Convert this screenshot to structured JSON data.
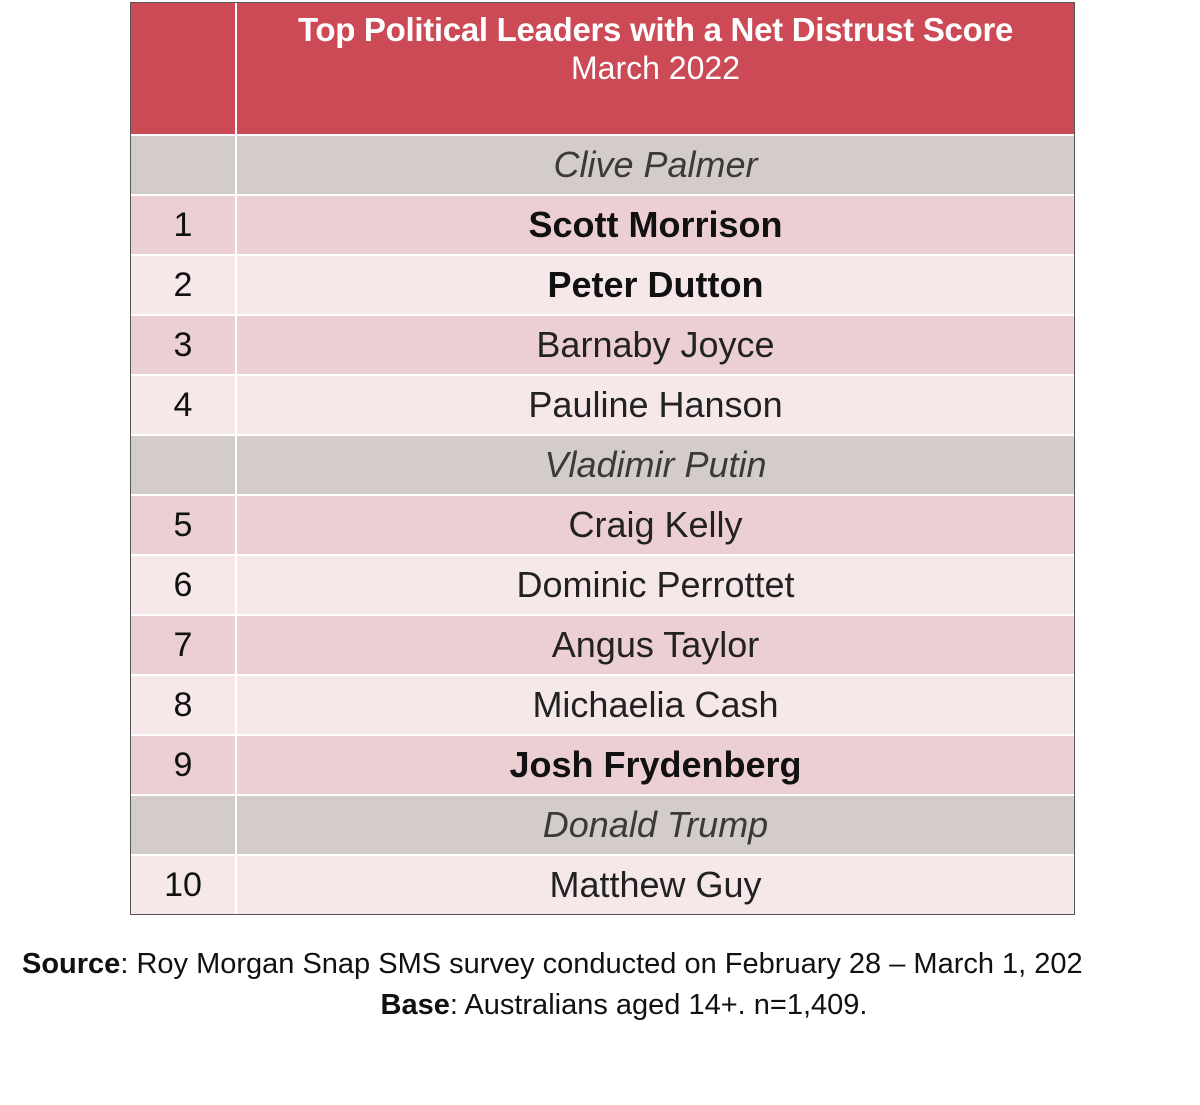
{
  "table": {
    "title": "Top Political Leaders with a Net Distrust Score",
    "subtitle": "March 2022",
    "rows": [
      {
        "rank": "",
        "name": "Clive Palmer",
        "style": "grey"
      },
      {
        "rank": "1",
        "name": "Scott Morrison",
        "style": "odd bold"
      },
      {
        "rank": "2",
        "name": "Peter Dutton",
        "style": "even bold"
      },
      {
        "rank": "3",
        "name": "Barnaby Joyce",
        "style": "odd"
      },
      {
        "rank": "4",
        "name": "Pauline Hanson",
        "style": "even"
      },
      {
        "rank": "",
        "name": "Vladimir Putin",
        "style": "grey"
      },
      {
        "rank": "5",
        "name": "Craig Kelly",
        "style": "odd"
      },
      {
        "rank": "6",
        "name": "Dominic Perrottet",
        "style": "even"
      },
      {
        "rank": "7",
        "name": "Angus Taylor",
        "style": "odd"
      },
      {
        "rank": "8",
        "name": "Michaelia Cash",
        "style": "even"
      },
      {
        "rank": "9",
        "name": "Josh Frydenberg",
        "style": "odd bold"
      },
      {
        "rank": "",
        "name": "Donald Trump",
        "style": "grey"
      },
      {
        "rank": "10",
        "name": "Matthew Guy",
        "style": "even"
      }
    ]
  },
  "footnote": {
    "source_label": "Source",
    "source_text": ": Roy Morgan Snap SMS survey conducted on February 28 – March 1, 202",
    "base_label": "Base",
    "base_text": ": Australians aged 14+. n=1,409."
  },
  "colors": {
    "header": "#cc4a56",
    "row_odd": "#eccfd2",
    "row_even": "#f6e8e9",
    "row_grey": "#d4ccc8"
  }
}
